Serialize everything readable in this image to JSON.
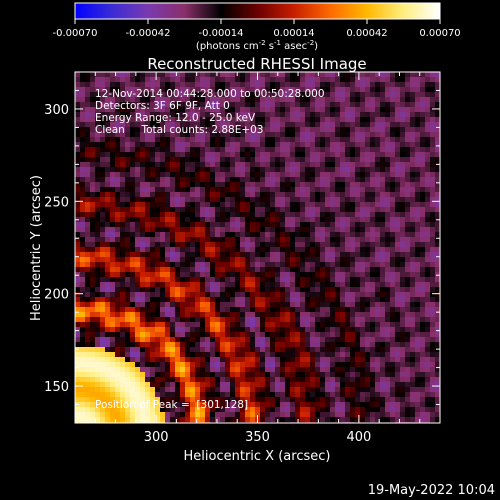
{
  "chart_data": {
    "type": "heatmap",
    "title": "Reconstructed RHESSI Image",
    "xlabel": "Heliocentric X (arcsec)",
    "ylabel": "Heliocentric Y (arcsec)",
    "xlim": [
      260,
      440
    ],
    "ylim": [
      130,
      320
    ],
    "x_ticks": [
      300,
      350,
      400
    ],
    "y_ticks": [
      150,
      200,
      250,
      300
    ],
    "colorbar": {
      "min": -0.0007,
      "max": 0.0007,
      "ticks": [
        "-0.00070",
        "-0.00042",
        "-0.00014",
        "0.00014",
        "0.00042",
        "0.00070"
      ],
      "unit_label": "(photons cm",
      "unit_exp1": "-2",
      "unit_mid": " s",
      "unit_exp2": "-1",
      "unit_mid2": " asec",
      "unit_exp3": "-2",
      "unit_end": ")",
      "colormap": [
        "#0000ff",
        "#3a2bd6",
        "#7a3ab0",
        "#8a2f6a",
        "#000000",
        "#6b0000",
        "#c81e00",
        "#ff6a00",
        "#ffb800",
        "#ffee80",
        "#ffffff"
      ]
    },
    "annotations": {
      "line1": "12-Nov-2014 00:44:28.000 to 00:50:28.000",
      "line2": "Detectors: 3F 6F 9F, Att 0",
      "line3": "Energy Range: 12.0 - 25.0 keV",
      "line4": "Clean     Total counts: 2.88E+03",
      "peak": "Position of Peak =  [301,128]"
    },
    "peak_position": [
      301,
      128
    ]
  },
  "footer": {
    "timestamp": "19-May-2022 10:04"
  }
}
